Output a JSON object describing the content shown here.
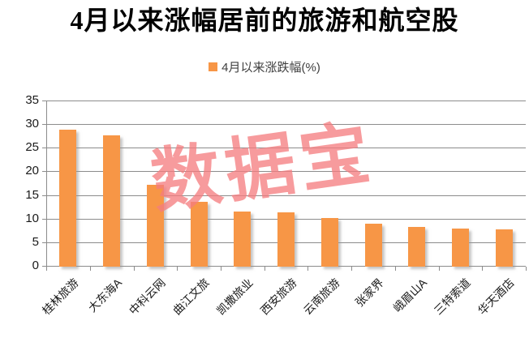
{
  "title": "4月以来涨幅居前的旅游和航空股",
  "legend": {
    "label": "4月以来涨跌幅(%)",
    "marker_color": "#F79646"
  },
  "watermark": {
    "text": "数据宝",
    "color": "#F57D7F"
  },
  "colors": {
    "bar": "#F79646",
    "grid": "#8C8C8C",
    "axis_line": "#8C8C8C",
    "axis_text": "#1A1A1A",
    "legend_text": "#3F3F3F",
    "title_text": "#000000",
    "watermark": "#F57D7F",
    "background": "#FFFFFF"
  },
  "chart_data": {
    "type": "bar",
    "title": "4月以来涨幅居前的旅游和航空股",
    "series_name": "4月以来涨跌幅(%)",
    "categories": [
      "桂林旅游",
      "大东海A",
      "中科云网",
      "曲江文旅",
      "凯撒旅业",
      "西安旅游",
      "云南旅游",
      "张家界",
      "峨眉山A",
      "三特索道",
      "华天酒店"
    ],
    "values": [
      29.0,
      27.8,
      17.4,
      13.8,
      11.6,
      11.5,
      10.3,
      9.1,
      8.4,
      8.0,
      7.9
    ],
    "xlabel": "",
    "ylabel": "",
    "ylim": [
      0,
      35
    ],
    "ytick_interval": 5,
    "grid": true,
    "legend_position": "top",
    "x_label_rotation": 45
  }
}
